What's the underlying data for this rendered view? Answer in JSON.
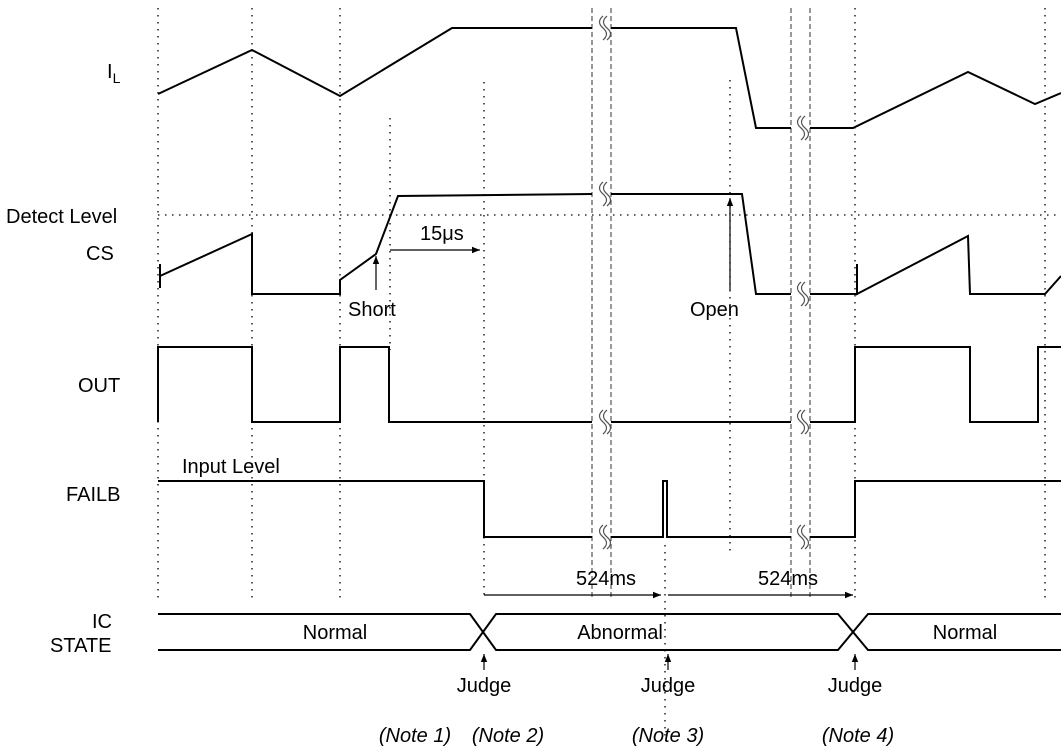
{
  "signals": {
    "il_main": "I",
    "il_sub": "L",
    "detect_level": "Detect Level",
    "cs": "CS",
    "out": "OUT",
    "failb": "FAILB",
    "ic_state_line1": "IC",
    "ic_state_line2": "STATE"
  },
  "annotations": {
    "t15us": "15μs",
    "short": "Short",
    "open": "Open",
    "input_level": "Input Level",
    "t524ms_1": "524ms",
    "t524ms_2": "524ms"
  },
  "states": {
    "normal_1": "Normal",
    "abnormal": "Abnormal",
    "normal_2": "Normal"
  },
  "judges": {
    "j1": "Judge",
    "j2": "Judge",
    "j3": "Judge"
  },
  "notes": {
    "n1": "(Note 1)",
    "n2": "(Note 2)",
    "n3": "(Note 3)",
    "n4": "(Note 4)"
  }
}
